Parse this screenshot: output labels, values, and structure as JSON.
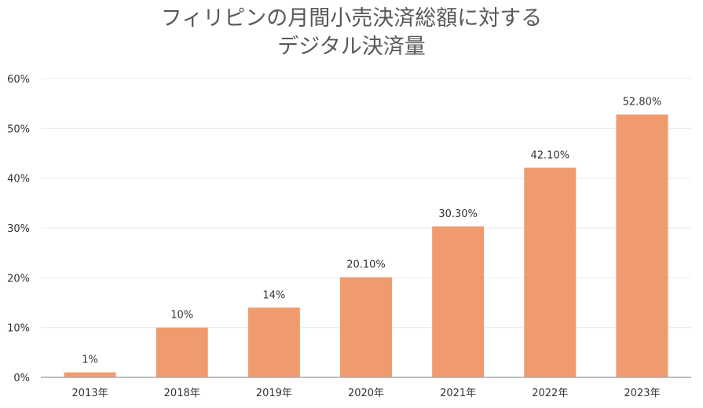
{
  "chart_data": {
    "type": "bar",
    "title_lines": [
      "フィリピンの月間小売決済総額に対する",
      "デジタル決済量"
    ],
    "categories": [
      "2013年",
      "2018年",
      "2019年",
      "2020年",
      "2021年",
      "2022年",
      "2023年"
    ],
    "values": [
      1,
      10,
      14,
      20.1,
      30.3,
      42.1,
      52.8
    ],
    "data_labels": [
      "1%",
      "10%",
      "14%",
      "20.10%",
      "30.30%",
      "42.10%",
      "52.80%"
    ],
    "y_ticks": [
      0,
      10,
      20,
      30,
      40,
      50,
      60
    ],
    "y_tick_labels": [
      "0%",
      "10%",
      "20%",
      "30%",
      "40%",
      "50%",
      "60%"
    ],
    "ylim": [
      0,
      60
    ],
    "xlabel": "",
    "ylabel": "",
    "grid": true,
    "legend": "none",
    "colors": {
      "bar": "#F09B6E",
      "grid": "#EBEBEB",
      "axis": "#AAAAAA",
      "text": "#333333",
      "title": "#595959"
    }
  }
}
